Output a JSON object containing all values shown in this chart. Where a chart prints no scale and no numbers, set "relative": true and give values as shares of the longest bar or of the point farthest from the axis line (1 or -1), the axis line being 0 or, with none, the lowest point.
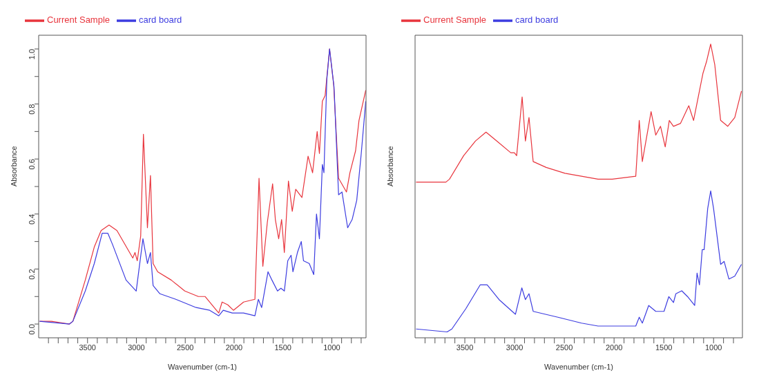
{
  "chart_data": [
    {
      "type": "line",
      "xlabel": "Wavenumber (cm-1)",
      "ylabel": "Absorbance",
      "legend": "top left",
      "grid": false,
      "xlim": [
        4000,
        650
      ],
      "xticks": [
        {
          "value": 3900,
          "label": null
        },
        {
          "value": 3800,
          "label": null
        },
        {
          "value": 3700,
          "label": null
        },
        {
          "value": 3600,
          "label": null
        },
        3500,
        {
          "value": 3400,
          "label": null
        },
        {
          "value": 3300,
          "label": null
        },
        {
          "value": 3200,
          "label": null
        },
        {
          "value": 3100,
          "label": null
        },
        3000,
        {
          "value": 2900,
          "label": null
        },
        {
          "value": 2800,
          "label": null
        },
        {
          "value": 2700,
          "label": null
        },
        {
          "value": 2600,
          "label": null
        },
        2500,
        {
          "value": 2400,
          "label": null
        },
        {
          "value": 2300,
          "label": null
        },
        {
          "value": 2200,
          "label": null
        },
        {
          "value": 2100,
          "label": null
        },
        2000,
        {
          "value": 1900,
          "label": null
        },
        {
          "value": 1800,
          "label": null
        },
        {
          "value": 1700,
          "label": null
        },
        {
          "value": 1600,
          "label": null
        },
        1500,
        {
          "value": 1400,
          "label": null
        },
        {
          "value": 1300,
          "label": null
        },
        {
          "value": 1200,
          "label": null
        },
        {
          "value": 1100,
          "label": null
        },
        1000,
        {
          "value": 900,
          "label": null
        },
        {
          "value": 800,
          "label": null
        },
        {
          "value": 700,
          "label": null
        }
      ],
      "ylim": [
        -0.05,
        1.05
      ],
      "yticks": [
        {
          "value": 0,
          "label": "0.0"
        },
        {
          "value": 0.1,
          "label": null
        },
        {
          "value": 0.2,
          "label": "0.2"
        },
        {
          "value": 0.3,
          "label": null
        },
        {
          "value": 0.4,
          "label": "0.4"
        },
        {
          "value": 0.5,
          "label": null
        },
        {
          "value": 0.6,
          "label": "0.6"
        },
        {
          "value": 0.7,
          "label": null
        },
        {
          "value": 0.8,
          "label": "0.8"
        },
        {
          "value": 0.9,
          "label": null
        },
        {
          "value": 1,
          "label": "1.0"
        }
      ],
      "series": [
        {
          "name": "Current Sample",
          "color": "#e8343c",
          "x": [
            3990,
            3870,
            3685,
            3650,
            3523,
            3431,
            3361,
            3280,
            3199,
            3037,
            3014,
            2991,
            2956,
            2928,
            2887,
            2856,
            2829,
            2782,
            2644,
            2505,
            2366,
            2296,
            2181,
            2157,
            2123,
            2065,
            2007,
            1903,
            1787,
            1745,
            1706,
            1660,
            1606,
            1578,
            1544,
            1514,
            1486,
            1444,
            1405,
            1370,
            1306,
            1243,
            1197,
            1150,
            1127,
            1097,
            1069,
            1023,
            981,
            931,
            850,
            815,
            757,
            722,
            653
          ],
          "values": [
            0.01,
            0.01,
            0.0,
            0.01,
            0.16,
            0.28,
            0.34,
            0.36,
            0.34,
            0.24,
            0.26,
            0.23,
            0.32,
            0.69,
            0.35,
            0.54,
            0.22,
            0.19,
            0.16,
            0.12,
            0.1,
            0.1,
            0.05,
            0.04,
            0.08,
            0.07,
            0.05,
            0.08,
            0.09,
            0.53,
            0.21,
            0.37,
            0.51,
            0.38,
            0.31,
            0.38,
            0.26,
            0.52,
            0.41,
            0.49,
            0.46,
            0.61,
            0.55,
            0.7,
            0.62,
            0.81,
            0.83,
            1.0,
            0.87,
            0.53,
            0.48,
            0.55,
            0.63,
            0.74,
            0.85
          ]
        },
        {
          "name": "card board",
          "color": "#3c3ce0",
          "x": [
            3990,
            3685,
            3650,
            3523,
            3431,
            3350,
            3292,
            3245,
            3106,
            3002,
            2933,
            2887,
            2856,
            2829,
            2759,
            2597,
            2389,
            2250,
            2157,
            2111,
            2019,
            1903,
            1787,
            1752,
            1718,
            1653,
            1613,
            1556,
            1521,
            1486,
            1451,
            1417,
            1398,
            1352,
            1313,
            1290,
            1231,
            1185,
            1157,
            1127,
            1097,
            1081,
            1051,
            1023,
            977,
            931,
            896,
            838,
            792,
            745,
            699,
            653
          ],
          "values": [
            0.01,
            0.0,
            0.01,
            0.12,
            0.22,
            0.33,
            0.33,
            0.29,
            0.16,
            0.12,
            0.31,
            0.22,
            0.26,
            0.14,
            0.11,
            0.09,
            0.06,
            0.05,
            0.03,
            0.05,
            0.04,
            0.04,
            0.03,
            0.09,
            0.06,
            0.19,
            0.16,
            0.12,
            0.13,
            0.12,
            0.23,
            0.25,
            0.19,
            0.26,
            0.3,
            0.23,
            0.22,
            0.18,
            0.4,
            0.31,
            0.58,
            0.55,
            0.89,
            1.0,
            0.86,
            0.47,
            0.48,
            0.35,
            0.38,
            0.45,
            0.62,
            0.81
          ]
        }
      ]
    },
    {
      "type": "line",
      "xlabel": "Wavenumber (cm-1)",
      "ylabel": "Absorbance",
      "legend": "top left",
      "grid": false,
      "relative": true,
      "xlim": [
        4000,
        710
      ],
      "xticks": [
        {
          "value": 3900,
          "label": null
        },
        {
          "value": 3800,
          "label": null
        },
        {
          "value": 3700,
          "label": null
        },
        {
          "value": 3600,
          "label": null
        },
        3500,
        {
          "value": 3400,
          "label": null
        },
        {
          "value": 3300,
          "label": null
        },
        {
          "value": 3200,
          "label": null
        },
        {
          "value": 3100,
          "label": null
        },
        3000,
        {
          "value": 2900,
          "label": null
        },
        {
          "value": 2800,
          "label": null
        },
        {
          "value": 2700,
          "label": null
        },
        {
          "value": 2600,
          "label": null
        },
        2500,
        {
          "value": 2400,
          "label": null
        },
        {
          "value": 2300,
          "label": null
        },
        {
          "value": 2200,
          "label": null
        },
        {
          "value": 2100,
          "label": null
        },
        2000,
        {
          "value": 1900,
          "label": null
        },
        {
          "value": 1800,
          "label": null
        },
        {
          "value": 1700,
          "label": null
        },
        {
          "value": 1600,
          "label": null
        },
        1500,
        {
          "value": 1400,
          "label": null
        },
        {
          "value": 1300,
          "label": null
        },
        {
          "value": 1200,
          "label": null
        },
        {
          "value": 1100,
          "label": null
        },
        1000,
        {
          "value": 900,
          "label": null
        },
        {
          "value": 800,
          "label": null
        }
      ],
      "series": [
        {
          "name": "Current Sample",
          "color": "#e8343c",
          "x": [
            3990,
            3690,
            3654,
            3512,
            3393,
            3287,
            3180,
            3038,
            3002,
            2979,
            2924,
            2891,
            2855,
            2813,
            2682,
            2493,
            2327,
            2161,
            2114,
            2019,
            1782,
            1747,
            1716,
            1628,
            1581,
            1533,
            1486,
            1445,
            1403,
            1332,
            1249,
            1201,
            1154,
            1107,
            1071,
            1029,
            988,
            929,
            858,
            787,
            720
          ],
          "values": [
            0.53,
            0.53,
            0.54,
            0.62,
            0.67,
            0.7,
            0.67,
            0.63,
            0.63,
            0.62,
            0.82,
            0.67,
            0.75,
            0.6,
            0.58,
            0.56,
            0.55,
            0.54,
            0.54,
            0.54,
            0.55,
            0.74,
            0.6,
            0.77,
            0.69,
            0.72,
            0.65,
            0.74,
            0.72,
            0.73,
            0.79,
            0.74,
            0.82,
            0.9,
            0.94,
            1.0,
            0.93,
            0.74,
            0.72,
            0.75,
            0.84
          ]
        },
        {
          "name": "card board",
          "color": "#3c3ce0",
          "x": [
            3990,
            3678,
            3630,
            3488,
            3346,
            3275,
            3156,
            2991,
            2927,
            2891,
            2855,
            2813,
            2564,
            2327,
            2161,
            2019,
            1782,
            1747,
            1716,
            1652,
            1581,
            1498,
            1450,
            1403,
            1379,
            1320,
            1261,
            1190,
            1166,
            1142,
            1114,
            1095,
            1059,
            1029,
            1000,
            929,
            894,
            846,
            787,
            720
          ],
          "values": [
            0.03,
            0.02,
            0.03,
            0.1,
            0.18,
            0.18,
            0.13,
            0.08,
            0.17,
            0.13,
            0.15,
            0.09,
            0.07,
            0.05,
            0.04,
            0.04,
            0.04,
            0.07,
            0.05,
            0.11,
            0.09,
            0.09,
            0.14,
            0.12,
            0.15,
            0.16,
            0.14,
            0.11,
            0.22,
            0.18,
            0.3,
            0.3,
            0.44,
            0.5,
            0.44,
            0.25,
            0.26,
            0.2,
            0.21,
            0.25
          ]
        }
      ]
    }
  ]
}
